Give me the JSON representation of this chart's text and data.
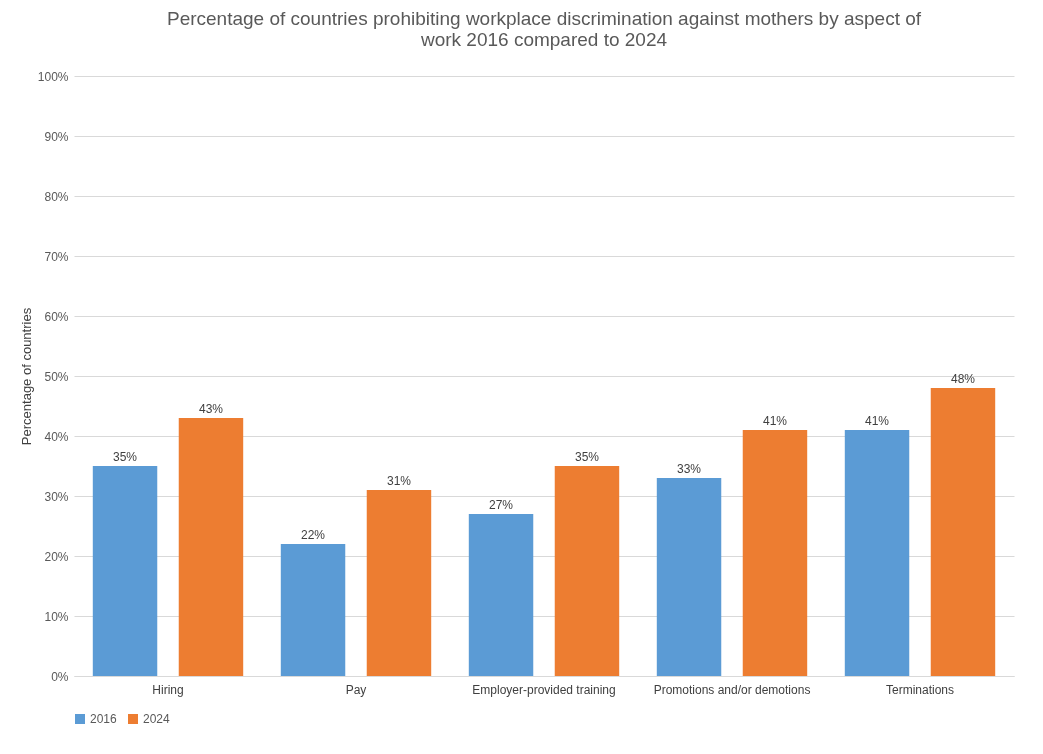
{
  "chart_data": {
    "type": "bar",
    "title": "Percentage of countries prohibiting workplace discrimination against mothers by aspect of work 2016 compared to 2024",
    "ylabel": "Percentage of countries",
    "categories": [
      "Hiring",
      "Pay",
      "Employer-provided training",
      "Promotions and/or demotions",
      "Terminations"
    ],
    "series": [
      {
        "name": "2016",
        "color": "#5b9bd5",
        "values": [
          35,
          22,
          27,
          33,
          41
        ],
        "value_labels": [
          "35%",
          "22%",
          "27%",
          "33%",
          "41%"
        ]
      },
      {
        "name": "2024",
        "color": "#ed7d31",
        "values": [
          43,
          31,
          35,
          41,
          48
        ],
        "value_labels": [
          "43%",
          "31%",
          "35%",
          "41%",
          "48%"
        ]
      }
    ],
    "ylim": [
      0,
      100
    ],
    "yticks": [
      {
        "value": 0,
        "label": "0%"
      },
      {
        "value": 10,
        "label": "10%"
      },
      {
        "value": 20,
        "label": "20%"
      },
      {
        "value": 30,
        "label": "30%"
      },
      {
        "value": 40,
        "label": "40%"
      },
      {
        "value": 50,
        "label": "50%"
      },
      {
        "value": 60,
        "label": "60%"
      },
      {
        "value": 70,
        "label": "70%"
      },
      {
        "value": 80,
        "label": "80%"
      },
      {
        "value": 90,
        "label": "90%"
      },
      {
        "value": 100,
        "label": "100%"
      }
    ],
    "grid": "y",
    "legend": "bottom"
  }
}
